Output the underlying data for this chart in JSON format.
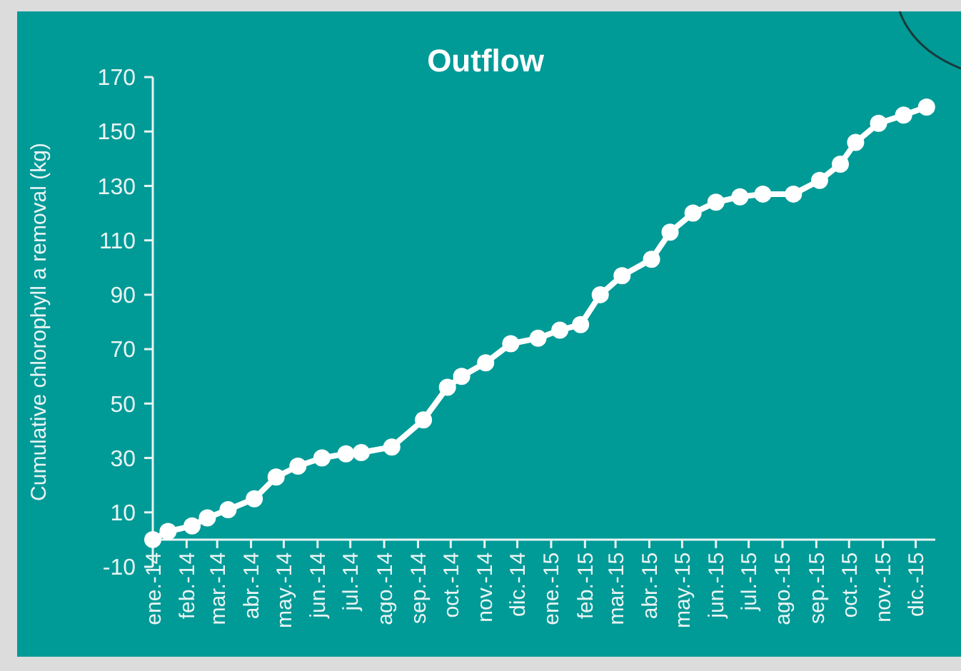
{
  "chart_data": {
    "type": "line",
    "title": "Outflow",
    "ylabel": "Cumulative chlorophyll a removal (kg)",
    "x": [
      "2014-01-01",
      "2014-01-15",
      "2014-02-06",
      "2014-02-20",
      "2014-03-11",
      "2014-04-04",
      "2014-04-24",
      "2014-05-14",
      "2014-06-05",
      "2014-06-27",
      "2014-07-11",
      "2014-08-08",
      "2014-09-06",
      "2014-09-28",
      "2014-10-11",
      "2014-11-02",
      "2014-11-25",
      "2014-12-20",
      "2015-01-09",
      "2015-01-28",
      "2015-02-15",
      "2015-03-07",
      "2015-04-03",
      "2015-04-20",
      "2015-05-11",
      "2015-06-01",
      "2015-06-23",
      "2015-07-14",
      "2015-08-11",
      "2015-09-04",
      "2015-09-23",
      "2015-10-07",
      "2015-10-28",
      "2015-11-20",
      "2015-12-11"
    ],
    "series": [
      {
        "color": "#ffffff",
        "values": [
          0,
          3,
          5,
          8,
          11,
          15,
          23,
          27,
          30,
          31.5,
          32,
          34,
          44,
          56,
          60,
          65,
          72,
          74,
          77,
          79,
          90,
          97,
          103,
          113,
          120,
          124,
          126,
          127,
          127,
          132,
          138,
          146,
          153,
          156,
          159
        ]
      }
    ],
    "xlim": [
      "2014-01-01",
      "2015-12-19"
    ],
    "xticks": [
      {
        "value": "2014-01-01",
        "label": "ene.-14"
      },
      {
        "value": "2014-02-01",
        "label": "feb.-14"
      },
      {
        "value": "2014-03-01",
        "label": "mar.-14"
      },
      {
        "value": "2014-04-01",
        "label": "abr.-14"
      },
      {
        "value": "2014-05-01",
        "label": "may.-14"
      },
      {
        "value": "2014-06-01",
        "label": "jun.-14"
      },
      {
        "value": "2014-07-01",
        "label": "jul.-14"
      },
      {
        "value": "2014-08-01",
        "label": "ago.-14"
      },
      {
        "value": "2014-09-01",
        "label": "sep.-14"
      },
      {
        "value": "2014-10-01",
        "label": "oct.-14"
      },
      {
        "value": "2014-11-01",
        "label": "nov.-14"
      },
      {
        "value": "2014-12-01",
        "label": "dic.-14"
      },
      {
        "value": "2015-01-01",
        "label": "ene.-15"
      },
      {
        "value": "2015-02-01",
        "label": "feb.-15"
      },
      {
        "value": "2015-03-01",
        "label": "mar.-15"
      },
      {
        "value": "2015-04-01",
        "label": "abr.-15"
      },
      {
        "value": "2015-05-01",
        "label": "may.-15"
      },
      {
        "value": "2015-06-01",
        "label": "jun.-15"
      },
      {
        "value": "2015-07-01",
        "label": "jul.-15"
      },
      {
        "value": "2015-08-01",
        "label": "ago.-15"
      },
      {
        "value": "2015-09-01",
        "label": "sep.-15"
      },
      {
        "value": "2015-10-01",
        "label": "oct.-15"
      },
      {
        "value": "2015-11-01",
        "label": "nov.-15"
      },
      {
        "value": "2015-12-01",
        "label": "dic.-15"
      }
    ],
    "ylim": [
      -10,
      170
    ],
    "yticks": [
      -10,
      10,
      30,
      50,
      70,
      90,
      110,
      130,
      150,
      170
    ],
    "grid": false,
    "marker": "circle",
    "line_style": "solid"
  }
}
